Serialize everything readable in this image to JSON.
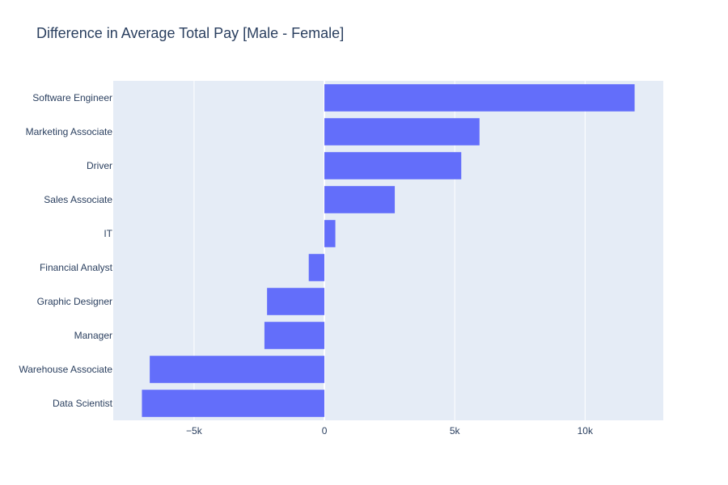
{
  "chart_data": {
    "type": "bar",
    "orientation": "horizontal",
    "title": "Difference in Average Total Pay [Male - Female]",
    "xlabel": "",
    "ylabel": "",
    "categories": [
      "Software Engineer",
      "Marketing Associate",
      "Driver",
      "Sales Associate",
      "IT",
      "Financial Analyst",
      "Graphic Designer",
      "Manager",
      "Warehouse Associate",
      "Data Scientist"
    ],
    "values": [
      11900,
      5950,
      5250,
      2700,
      420,
      -600,
      -2200,
      -2300,
      -6700,
      -7000
    ],
    "xlim": [
      -8100,
      13000
    ],
    "x_ticks": [
      -5000,
      0,
      5000,
      10000
    ],
    "x_tick_labels": [
      "−5k",
      "0",
      "5k",
      "10k"
    ],
    "bar_color": "#636efa",
    "plot_bg": "#e5ecf6",
    "grid": true,
    "legend": "none"
  }
}
